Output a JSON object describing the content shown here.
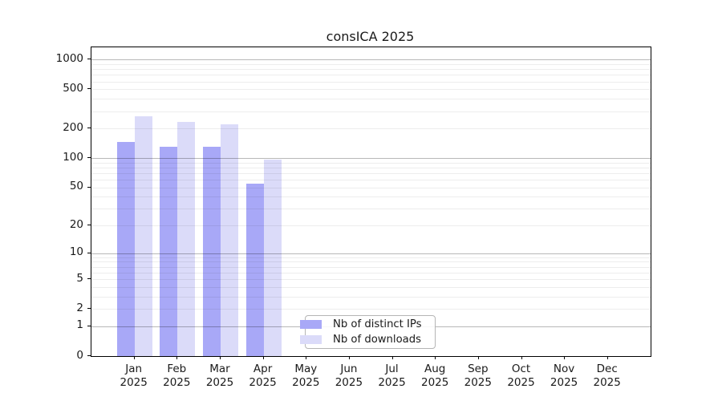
{
  "chart_data": {
    "type": "bar",
    "title": "consICA 2025",
    "scale": "log1p",
    "ylim": [
      0,
      1330
    ],
    "y_ticks": [
      0,
      1,
      2,
      5,
      10,
      20,
      50,
      100,
      200,
      500,
      1000
    ],
    "y_major_gridlines": [
      1,
      10,
      100,
      1000
    ],
    "y_minor_gridlines": [
      2,
      3,
      4,
      5,
      6,
      7,
      8,
      9,
      20,
      30,
      40,
      50,
      60,
      70,
      80,
      90,
      200,
      300,
      400,
      500,
      600,
      700,
      800,
      900
    ],
    "categories": [
      "Jan",
      "Feb",
      "Mar",
      "Apr",
      "May",
      "Jun",
      "Jul",
      "Aug",
      "Sep",
      "Oct",
      "Nov",
      "Dec"
    ],
    "x_second_line": "2025",
    "series": [
      {
        "name": "Nb of distinct IPs",
        "color": "#a8a8f7",
        "values": [
          147,
          130,
          130,
          55,
          0,
          0,
          0,
          0,
          0,
          0,
          0,
          0
        ]
      },
      {
        "name": "Nb of downloads",
        "color": "#dbdbf9",
        "values": [
          268,
          235,
          222,
          97,
          0,
          0,
          0,
          0,
          0,
          0,
          0,
          0
        ]
      }
    ],
    "legend_position": "lower center",
    "grid": "on"
  }
}
